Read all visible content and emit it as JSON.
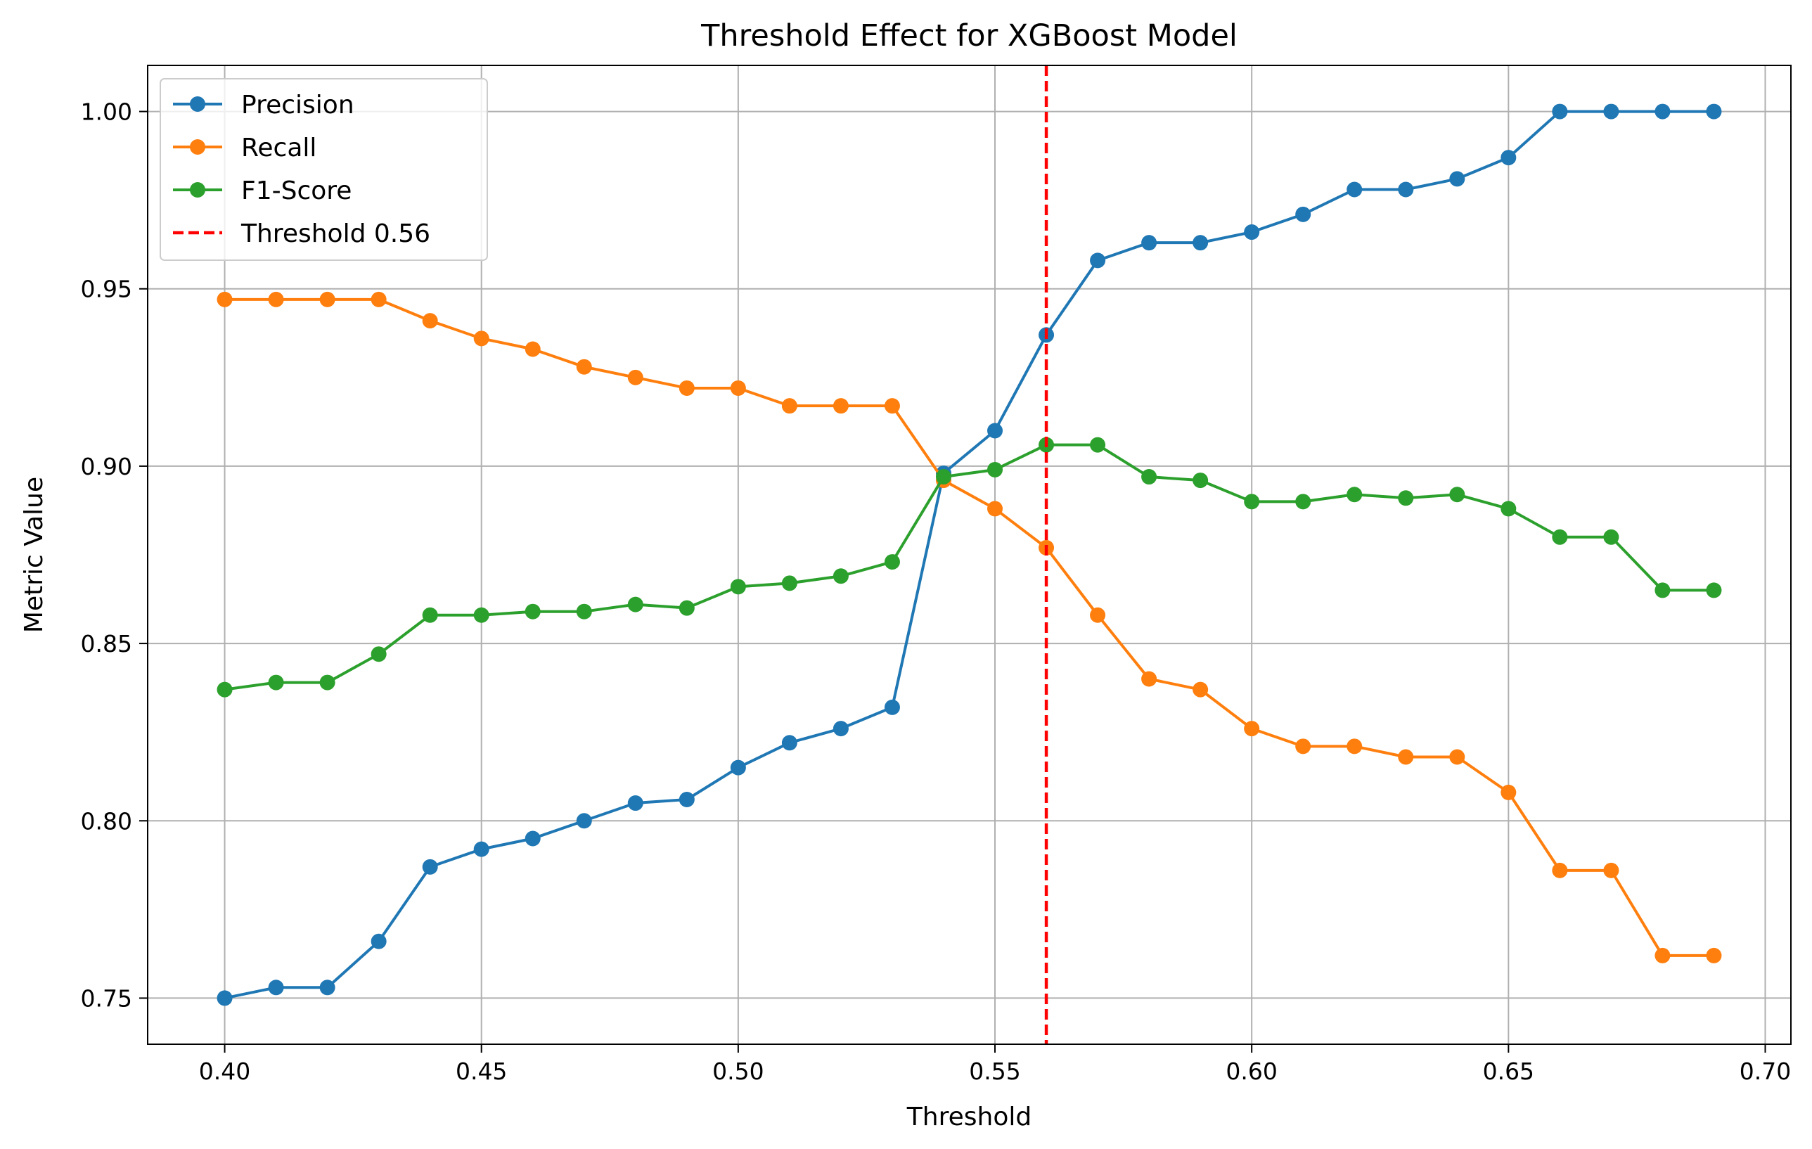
{
  "chart_data": {
    "type": "line",
    "title": "Threshold Effect for XGBoost Model",
    "xlabel": "Threshold",
    "ylabel": "Metric Value",
    "xlim": [
      0.385,
      0.705
    ],
    "ylim": [
      0.737,
      1.013
    ],
    "xticks": [
      0.4,
      0.45,
      0.5,
      0.55,
      0.6,
      0.65,
      0.7
    ],
    "xtick_labels": [
      "0.40",
      "0.45",
      "0.50",
      "0.55",
      "0.60",
      "0.65",
      "0.70"
    ],
    "yticks": [
      0.75,
      0.8,
      0.85,
      0.9,
      0.95,
      1.0
    ],
    "ytick_labels": [
      "0.75",
      "0.80",
      "0.85",
      "0.90",
      "0.95",
      "1.00"
    ],
    "grid": true,
    "legend_position": "top-left",
    "x": [
      0.4,
      0.41,
      0.42,
      0.43,
      0.44,
      0.45,
      0.46,
      0.47,
      0.48,
      0.49,
      0.5,
      0.51,
      0.52,
      0.53,
      0.54,
      0.55,
      0.56,
      0.57,
      0.58,
      0.59,
      0.6,
      0.61,
      0.62,
      0.63,
      0.64,
      0.65,
      0.66,
      0.67,
      0.68,
      0.69
    ],
    "series": [
      {
        "name": "Precision",
        "color": "#1f77b4",
        "values": [
          0.75,
          0.753,
          0.753,
          0.766,
          0.787,
          0.792,
          0.795,
          0.8,
          0.805,
          0.806,
          0.815,
          0.822,
          0.826,
          0.832,
          0.898,
          0.91,
          0.937,
          0.958,
          0.963,
          0.963,
          0.966,
          0.971,
          0.978,
          0.978,
          0.981,
          0.987,
          1.0,
          1.0,
          1.0,
          1.0
        ]
      },
      {
        "name": "Recall",
        "color": "#ff7f0e",
        "values": [
          0.947,
          0.947,
          0.947,
          0.947,
          0.941,
          0.936,
          0.933,
          0.928,
          0.925,
          0.922,
          0.922,
          0.917,
          0.917,
          0.917,
          0.896,
          0.888,
          0.877,
          0.858,
          0.84,
          0.837,
          0.826,
          0.821,
          0.821,
          0.818,
          0.818,
          0.808,
          0.786,
          0.786,
          0.762,
          0.762
        ]
      },
      {
        "name": "F1-Score",
        "color": "#2ca02c",
        "values": [
          0.837,
          0.839,
          0.839,
          0.847,
          0.858,
          0.858,
          0.859,
          0.859,
          0.861,
          0.86,
          0.866,
          0.867,
          0.869,
          0.873,
          0.897,
          0.899,
          0.906,
          0.906,
          0.897,
          0.896,
          0.89,
          0.89,
          0.892,
          0.891,
          0.892,
          0.888,
          0.88,
          0.88,
          0.865,
          0.865
        ]
      }
    ],
    "vline": {
      "x": 0.56,
      "name": "Threshold 0.56",
      "color": "#ff0000"
    }
  }
}
